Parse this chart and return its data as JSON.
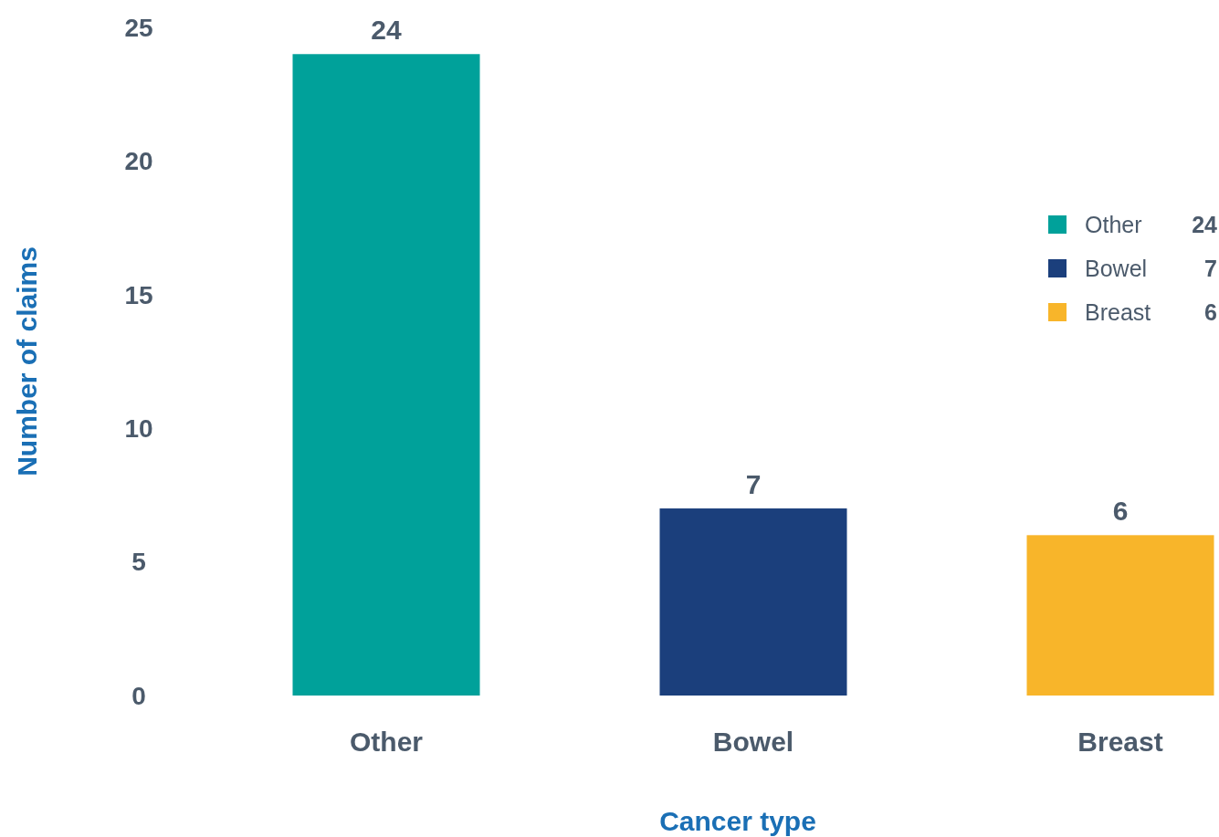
{
  "chart_data": {
    "type": "bar",
    "xlabel": "Cancer type",
    "ylabel": "Number of claims",
    "categories": [
      "Other",
      "Bowel",
      "Breast"
    ],
    "series": [
      {
        "name": "Other",
        "color": "#00a19a",
        "values": [
          24,
          null,
          null
        ]
      },
      {
        "name": "Bowel",
        "color": "#1b3f7c",
        "values": [
          null,
          7,
          null
        ]
      },
      {
        "name": "Breast",
        "color": "#f8b52a",
        "values": [
          null,
          null,
          6
        ]
      }
    ],
    "stacked": true,
    "ylim": [
      0,
      25
    ],
    "yticks": [
      0,
      5,
      10,
      15,
      20,
      25
    ],
    "legend": "right",
    "data_labels": true,
    "grid": false,
    "annotations": [
      "24",
      "7",
      "6"
    ]
  }
}
